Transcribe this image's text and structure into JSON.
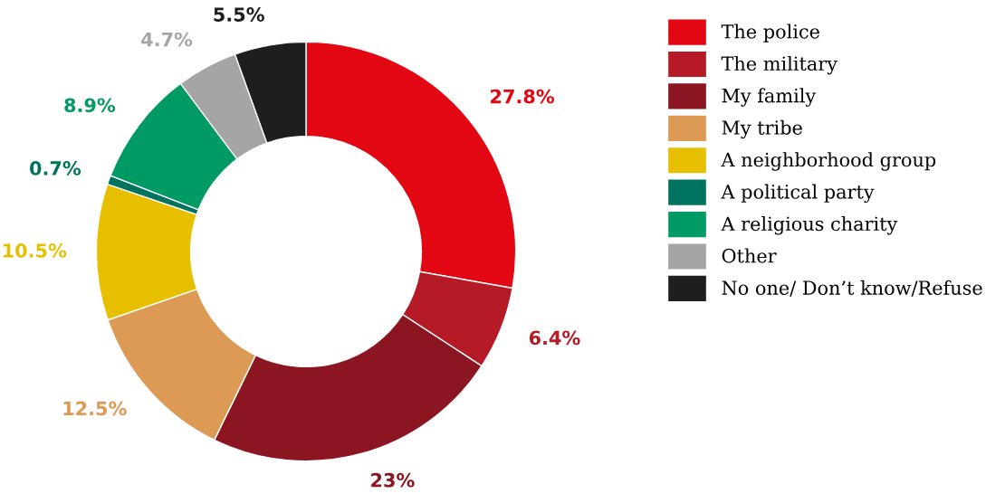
{
  "chart_data": {
    "type": "donut",
    "categories": [
      "The police",
      "The military",
      "My family",
      "My tribe",
      "A neighborhood group",
      "A political party",
      "A religious charity",
      "Other",
      "No one/ Don’t know/Refuse"
    ],
    "values": [
      27.8,
      6.4,
      23,
      12.5,
      10.5,
      0.7,
      8.9,
      4.7,
      5.5
    ],
    "colors": [
      "#e30613",
      "#b51a26",
      "#8b1520",
      "#dd9a55",
      "#e6c000",
      "#00735f",
      "#009a64",
      "#a5a5a5",
      "#1e1e1e"
    ],
    "value_labels": [
      "27.8%",
      "6.4%",
      "23%",
      "12.5%",
      "10.5%",
      "0.7%",
      "8.9%",
      "4.7%",
      "5.5%"
    ],
    "legend": "top right"
  }
}
